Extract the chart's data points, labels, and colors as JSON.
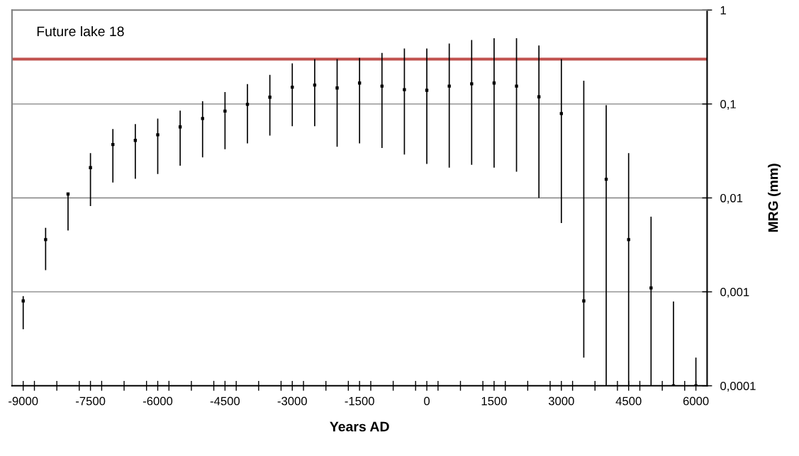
{
  "chart_data": {
    "type": "scatter",
    "annotations": [
      "Future lake 18"
    ],
    "xlabel": "Years AD",
    "ylabel": "MRG (mm)",
    "x": [
      -9000,
      -8500,
      -8000,
      -7500,
      -7000,
      -6500,
      -6000,
      -5500,
      -5000,
      -4500,
      -4000,
      -3500,
      -3000,
      -2500,
      -2000,
      -1500,
      -1000,
      -500,
      0,
      500,
      1000,
      1500,
      2000,
      2500,
      3000,
      3500,
      4000,
      4500,
      5000,
      5500,
      6000
    ],
    "series": [
      {
        "color": "#000000",
        "values": [
          0.0008,
          0.0036,
          0.011,
          0.021,
          0.037,
          0.041,
          0.047,
          0.057,
          0.07,
          0.084,
          0.099,
          0.118,
          0.151,
          0.159,
          0.148,
          0.167,
          0.155,
          0.142,
          0.14,
          0.155,
          0.164,
          0.167,
          0.155,
          0.119,
          0.079,
          0.0008,
          0.0158,
          0.0036,
          0.0011,
          0.0001,
          0.0001
        ],
        "errors": [
          [
            0.0004,
            0.0009
          ],
          [
            0.0017,
            0.0048
          ],
          [
            0.0045,
            0.011
          ],
          [
            0.0082,
            0.03
          ],
          [
            0.0146,
            0.054
          ],
          [
            0.016,
            0.061
          ],
          [
            0.018,
            0.07
          ],
          [
            0.022,
            0.085
          ],
          [
            0.027,
            0.107
          ],
          [
            0.033,
            0.134
          ],
          [
            0.038,
            0.163
          ],
          [
            0.046,
            0.204
          ],
          [
            0.058,
            0.27
          ],
          [
            0.058,
            0.3
          ],
          [
            0.035,
            0.3
          ],
          [
            0.038,
            0.31
          ],
          [
            0.034,
            0.35
          ],
          [
            0.029,
            0.39
          ],
          [
            0.023,
            0.39
          ],
          [
            0.021,
            0.44
          ],
          [
            0.0225,
            0.48
          ],
          [
            0.021,
            0.5
          ],
          [
            0.019,
            0.5
          ],
          [
            0.01,
            0.42
          ],
          [
            0.0054,
            0.3
          ],
          [
            0.0002,
            0.177
          ],
          [
            0.0001,
            0.097
          ],
          [
            0.0001,
            0.03
          ],
          [
            0.0001,
            0.0063
          ],
          [
            0.0001,
            0.00079
          ],
          [
            0.0001,
            0.0002
          ]
        ]
      }
    ],
    "marker": "square",
    "log": "y",
    "xlim": [
      -9250,
      6250
    ],
    "xticks": [
      {
        "value": -9000,
        "label": "-9000"
      },
      {
        "value": -7500,
        "label": "-7500"
      },
      {
        "value": -6000,
        "label": "-6000"
      },
      {
        "value": -4500,
        "label": "-4500"
      },
      {
        "value": -3000,
        "label": "-3000"
      },
      {
        "value": -1500,
        "label": "-1500"
      },
      {
        "value": 0,
        "label": "0"
      },
      {
        "value": 1500,
        "label": "1500"
      },
      {
        "value": 3000,
        "label": "3000"
      },
      {
        "value": 4500,
        "label": "4500"
      },
      {
        "value": 6000,
        "label": "6000"
      },
      {
        "value": -8750,
        "label": null
      },
      {
        "value": -8250,
        "label": null
      },
      {
        "value": -7750,
        "label": null
      },
      {
        "value": -7250,
        "label": null
      },
      {
        "value": -6750,
        "label": null
      },
      {
        "value": -6250,
        "label": null
      },
      {
        "value": -5750,
        "label": null
      },
      {
        "value": -5250,
        "label": null
      },
      {
        "value": -4750,
        "label": null
      },
      {
        "value": -4250,
        "label": null
      },
      {
        "value": -3750,
        "label": null
      },
      {
        "value": -3250,
        "label": null
      },
      {
        "value": -2750,
        "label": null
      },
      {
        "value": -2250,
        "label": null
      },
      {
        "value": -1750,
        "label": null
      },
      {
        "value": -1250,
        "label": null
      },
      {
        "value": -750,
        "label": null
      },
      {
        "value": -250,
        "label": null
      },
      {
        "value": 250,
        "label": null
      },
      {
        "value": 750,
        "label": null
      },
      {
        "value": 1250,
        "label": null
      },
      {
        "value": 1750,
        "label": null
      },
      {
        "value": 2250,
        "label": null
      },
      {
        "value": 2750,
        "label": null
      },
      {
        "value": 3250,
        "label": null
      },
      {
        "value": 3750,
        "label": null
      },
      {
        "value": 4250,
        "label": null
      },
      {
        "value": 4750,
        "label": null
      },
      {
        "value": 5250,
        "label": null
      },
      {
        "value": 5750,
        "label": null
      }
    ],
    "ylim": [
      0.0001,
      1
    ],
    "yticks": [
      {
        "value": 0.0001,
        "label": "0,0001"
      },
      {
        "value": 0.001,
        "label": "0,001"
      },
      {
        "value": 0.01,
        "label": "0,01"
      },
      {
        "value": 0.1,
        "label": "0,1"
      },
      1
    ],
    "grid": "y",
    "ref_lines": [
      {
        "axis": "y",
        "value": 0.3,
        "color": "#c0504d"
      }
    ]
  }
}
